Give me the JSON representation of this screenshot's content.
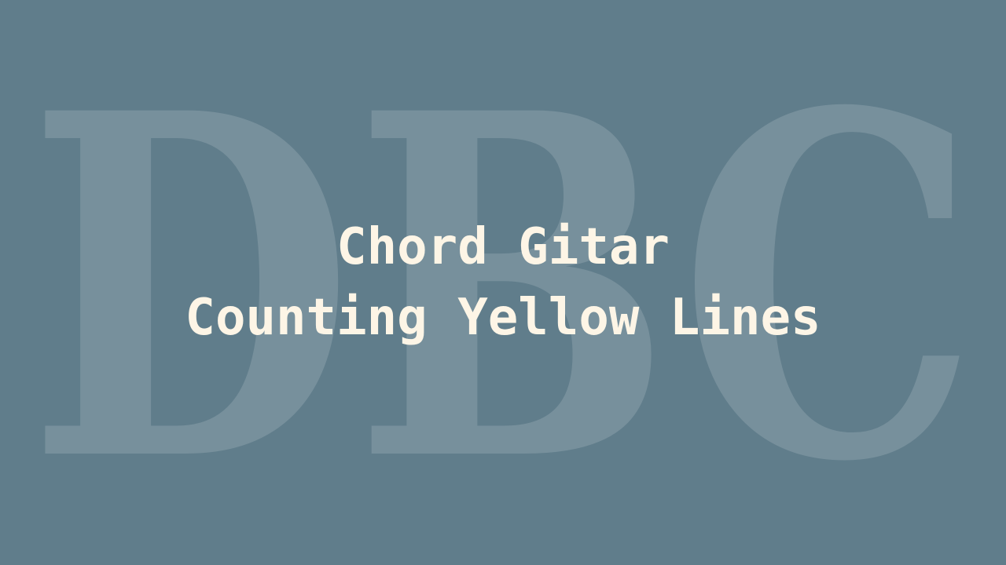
{
  "watermark": {
    "text": "DBC"
  },
  "title": {
    "line1": "Chord Gitar",
    "line2": "Counting Yellow Lines"
  },
  "colors": {
    "background": "#607d8b",
    "title_text": "#fdf5e6",
    "watermark": "#ffffff"
  }
}
